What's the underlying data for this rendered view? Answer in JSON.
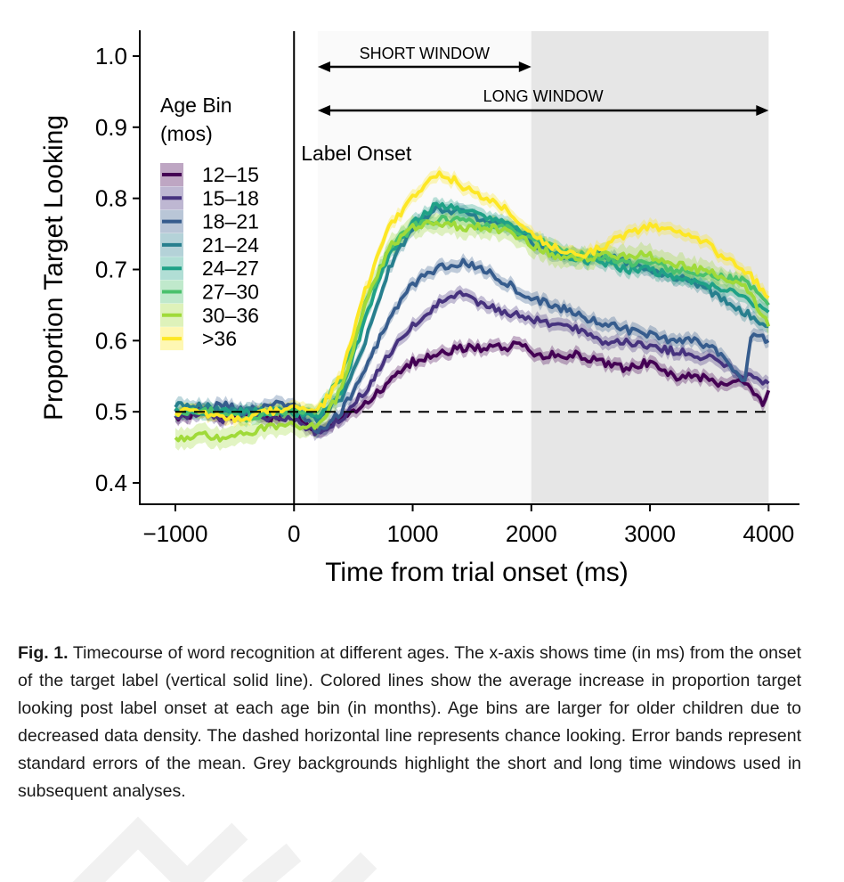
{
  "chart_data": {
    "type": "line",
    "xlabel": "Time from trial onset (ms)",
    "ylabel": "Proportion Target Looking",
    "xlim": [
      -1300,
      4260
    ],
    "ylim": [
      0.37,
      1.035
    ],
    "xticks": [
      -1000,
      0,
      1000,
      2000,
      3000,
      4000
    ],
    "xtick_labels": [
      "−1000",
      "0",
      "1000",
      "2000",
      "3000",
      "4000"
    ],
    "yticks": [
      0.4,
      0.5,
      0.6,
      0.7,
      0.8,
      0.9,
      1.0
    ],
    "ytick_labels": [
      "0.4",
      "0.5",
      "0.6",
      "0.7",
      "0.8",
      "0.9",
      "1.0"
    ],
    "chance_line": 0.5,
    "label_onset_x": 0,
    "label_onset_text": "Label Onset",
    "short_window": {
      "label": "SHORT WINDOW",
      "range": [
        200,
        2000
      ]
    },
    "long_window": {
      "label": "LONG WINDOW",
      "range": [
        200,
        4000
      ]
    },
    "grey_background_range": [
      2000,
      4000
    ],
    "light_background_range": [
      200,
      2000
    ],
    "legend": {
      "title_line1": "Age Bin",
      "title_line2": "(mos)",
      "location": "upper-left"
    },
    "series": [
      {
        "name": "12–15",
        "color": "#440154",
        "x": [
          -1000,
          -800,
          -600,
          -400,
          -200,
          0,
          200,
          400,
          600,
          800,
          1000,
          1200,
          1400,
          1600,
          1800,
          1900,
          2000,
          2200,
          2400,
          2600,
          2800,
          3000,
          3200,
          3400,
          3600,
          3800,
          3950,
          4000
        ],
        "values": [
          0.49,
          0.5,
          0.49,
          0.5,
          0.49,
          0.5,
          0.47,
          0.49,
          0.51,
          0.54,
          0.57,
          0.58,
          0.59,
          0.59,
          0.59,
          0.6,
          0.58,
          0.58,
          0.58,
          0.57,
          0.56,
          0.57,
          0.55,
          0.55,
          0.54,
          0.54,
          0.51,
          0.53
        ]
      },
      {
        "name": "15–18",
        "color": "#46327e",
        "x": [
          -1000,
          -800,
          -600,
          -400,
          -200,
          0,
          200,
          400,
          600,
          800,
          1000,
          1200,
          1400,
          1600,
          1800,
          2000,
          2200,
          2400,
          2600,
          2800,
          3000,
          3200,
          3400,
          3600,
          3800,
          4000
        ],
        "values": [
          0.49,
          0.5,
          0.49,
          0.5,
          0.49,
          0.49,
          0.47,
          0.49,
          0.53,
          0.58,
          0.62,
          0.65,
          0.665,
          0.65,
          0.64,
          0.63,
          0.62,
          0.615,
          0.6,
          0.6,
          0.59,
          0.585,
          0.58,
          0.57,
          0.55,
          0.54
        ]
      },
      {
        "name": "18–21",
        "color": "#365c8d",
        "x": [
          -1000,
          -800,
          -600,
          -400,
          -200,
          0,
          200,
          400,
          600,
          800,
          1000,
          1200,
          1400,
          1600,
          1800,
          2000,
          2200,
          2400,
          2600,
          2800,
          3000,
          3200,
          3400,
          3600,
          3800,
          3850,
          3900,
          4000
        ],
        "values": [
          0.5,
          0.5,
          0.51,
          0.5,
          0.51,
          0.51,
          0.47,
          0.5,
          0.56,
          0.63,
          0.68,
          0.7,
          0.71,
          0.7,
          0.68,
          0.66,
          0.65,
          0.635,
          0.625,
          0.615,
          0.61,
          0.6,
          0.6,
          0.58,
          0.54,
          0.6,
          0.61,
          0.6
        ]
      },
      {
        "name": "21–24",
        "color": "#277f8e",
        "x": [
          -1000,
          -800,
          -600,
          -400,
          -200,
          0,
          200,
          400,
          600,
          800,
          1000,
          1200,
          1400,
          1600,
          1800,
          2000,
          2200,
          2400,
          2600,
          2800,
          3000,
          3200,
          3400,
          3600,
          3800,
          4000
        ],
        "values": [
          0.51,
          0.51,
          0.5,
          0.5,
          0.5,
          0.5,
          0.49,
          0.52,
          0.6,
          0.7,
          0.76,
          0.785,
          0.78,
          0.77,
          0.76,
          0.74,
          0.72,
          0.72,
          0.72,
          0.71,
          0.7,
          0.69,
          0.68,
          0.66,
          0.64,
          0.62
        ]
      },
      {
        "name": "24–27",
        "color": "#1fa187",
        "x": [
          -1000,
          -800,
          -600,
          -400,
          -200,
          0,
          200,
          400,
          600,
          800,
          1000,
          1200,
          1400,
          1600,
          1800,
          2000,
          2200,
          2400,
          2600,
          2800,
          3000,
          3200,
          3400,
          3600,
          3800,
          4000
        ],
        "values": [
          0.5,
          0.5,
          0.5,
          0.5,
          0.5,
          0.5,
          0.49,
          0.53,
          0.63,
          0.72,
          0.765,
          0.79,
          0.785,
          0.775,
          0.765,
          0.745,
          0.725,
          0.715,
          0.71,
          0.7,
          0.7,
          0.69,
          0.68,
          0.675,
          0.66,
          0.64
        ]
      },
      {
        "name": "27–30",
        "color": "#4ac16d",
        "x": [
          -1000,
          -800,
          -600,
          -400,
          -200,
          0,
          200,
          400,
          600,
          800,
          1000,
          1200,
          1400,
          1600,
          1800,
          2000,
          2200,
          2400,
          2600,
          2800,
          3000,
          3200,
          3400,
          3600,
          3800,
          4000
        ],
        "values": [
          0.5,
          0.5,
          0.5,
          0.49,
          0.5,
          0.5,
          0.5,
          0.55,
          0.65,
          0.73,
          0.76,
          0.77,
          0.77,
          0.76,
          0.76,
          0.745,
          0.73,
          0.72,
          0.72,
          0.71,
          0.71,
          0.7,
          0.695,
          0.69,
          0.685,
          0.65
        ]
      },
      {
        "name": "30–36",
        "color": "#a0da39",
        "x": [
          -1000,
          -800,
          -600,
          -400,
          -200,
          0,
          200,
          400,
          600,
          800,
          1000,
          1200,
          1400,
          1600,
          1800,
          2000,
          2200,
          2400,
          2600,
          2800,
          3000,
          3200,
          3400,
          3600,
          3800,
          4000
        ],
        "values": [
          0.46,
          0.47,
          0.46,
          0.47,
          0.48,
          0.48,
          0.48,
          0.53,
          0.65,
          0.73,
          0.76,
          0.765,
          0.76,
          0.76,
          0.755,
          0.735,
          0.72,
          0.715,
          0.72,
          0.72,
          0.72,
          0.71,
          0.7,
          0.69,
          0.68,
          0.62
        ]
      },
      {
        "name": ">36",
        "color": "#fde725",
        "x": [
          -1000,
          -800,
          -600,
          -400,
          -200,
          0,
          200,
          400,
          600,
          800,
          1000,
          1100,
          1200,
          1300,
          1400,
          1600,
          1800,
          2000,
          2200,
          2400,
          2600,
          2800,
          3000,
          3200,
          3400,
          3600,
          3800,
          4000
        ],
        "values": [
          0.5,
          0.5,
          0.49,
          0.49,
          0.5,
          0.51,
          0.5,
          0.55,
          0.67,
          0.76,
          0.8,
          0.82,
          0.835,
          0.83,
          0.82,
          0.8,
          0.785,
          0.75,
          0.73,
          0.72,
          0.73,
          0.75,
          0.76,
          0.755,
          0.745,
          0.72,
          0.7,
          0.66
        ]
      }
    ]
  },
  "caption": {
    "label": "Fig. 1.",
    "text": "Timecourse of word recognition at different ages. The x-axis shows time (in ms) from the onset of the target label (vertical solid line). Colored lines show the average increase in proportion target looking post label onset at each age bin (in months). Age bins are larger for older children due to decreased data density. The dashed horizontal line represents chance looking. Error bands represent standard errors of the mean. Grey backgrounds highlight the short and long time windows used in subsequent analyses."
  }
}
